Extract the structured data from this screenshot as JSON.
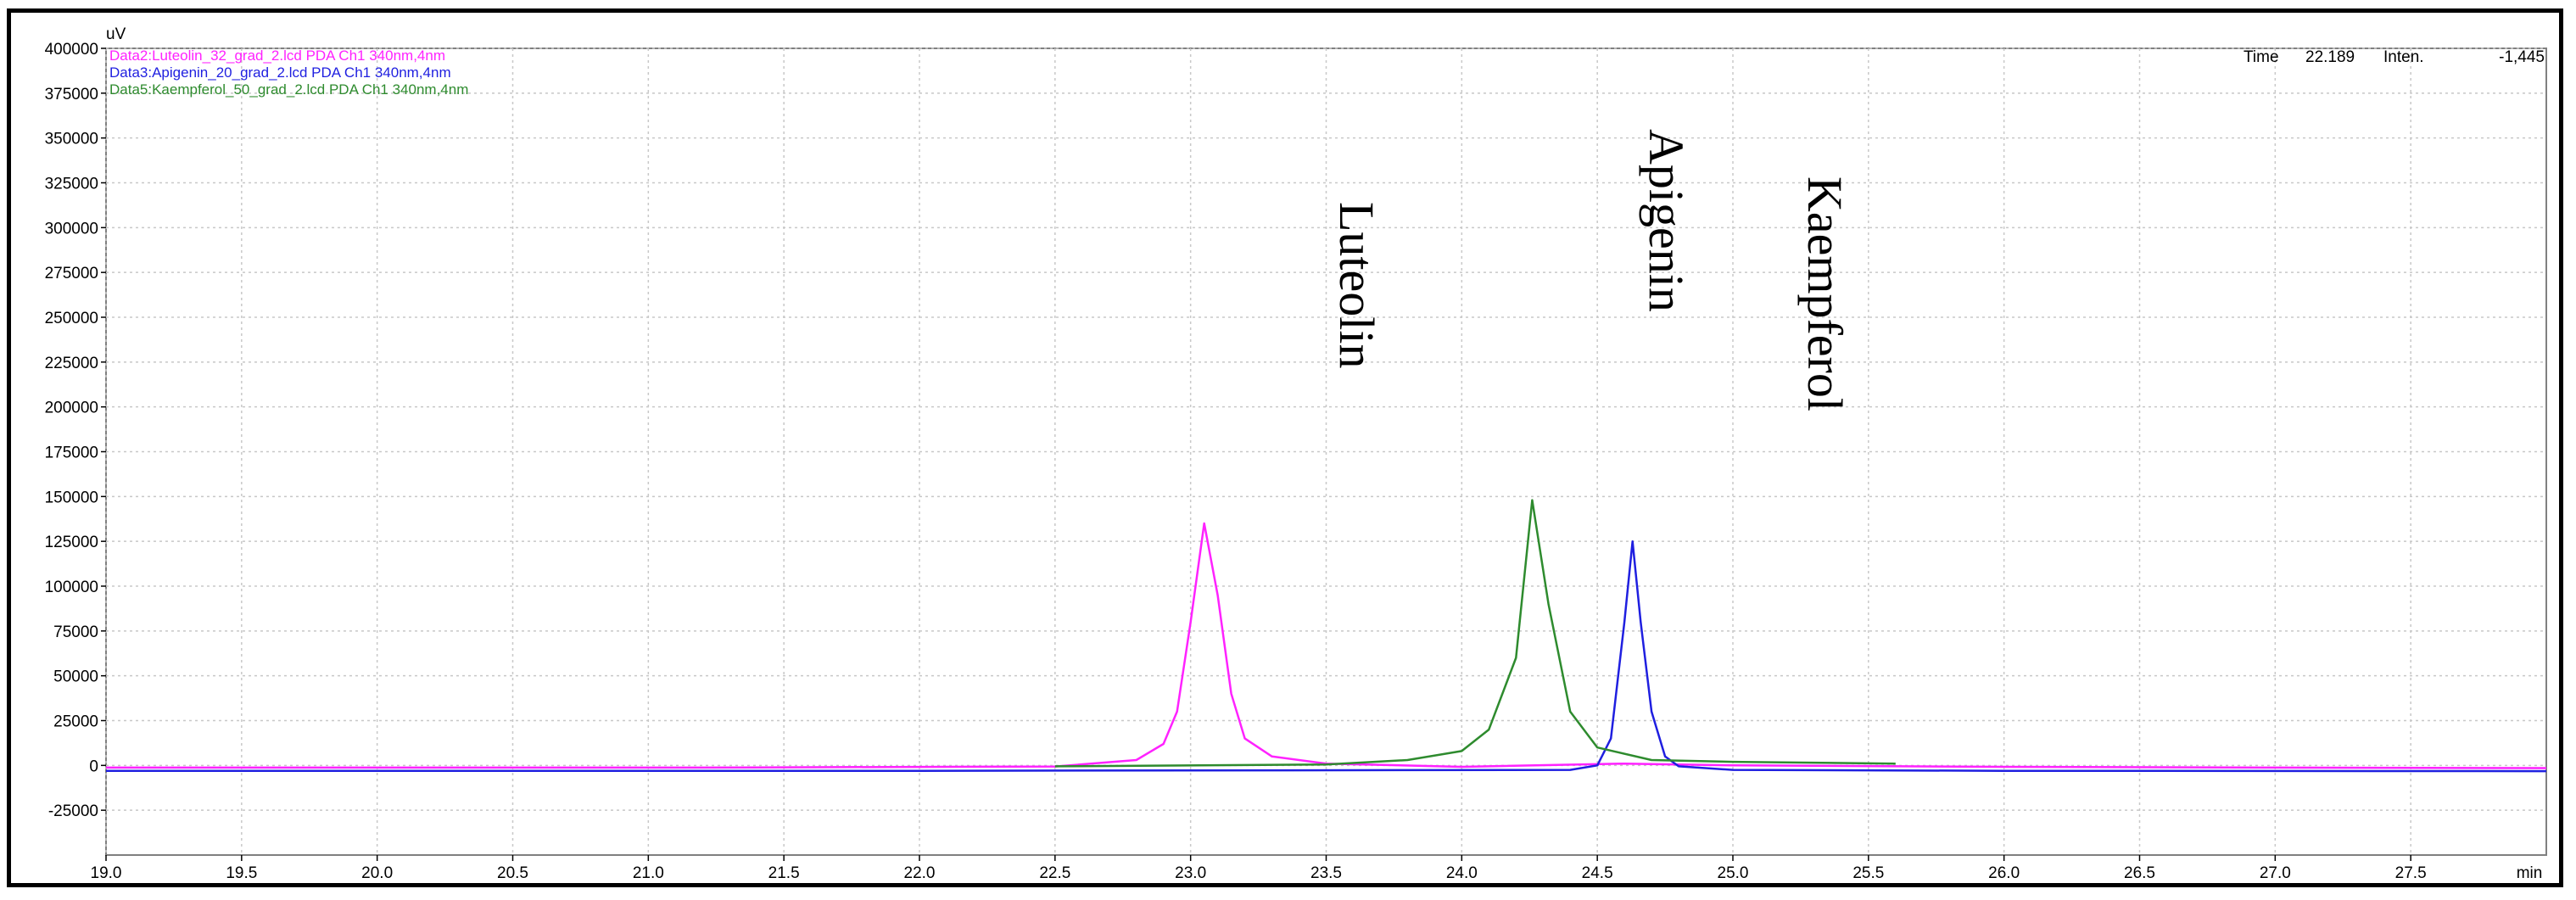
{
  "chart_data": {
    "type": "line",
    "ylabel": "uV",
    "xunit": "min",
    "xlim": [
      19.0,
      28.0
    ],
    "ylim": [
      -50000,
      400000
    ],
    "grid": true,
    "yticks": [
      400000,
      375000,
      350000,
      325000,
      300000,
      275000,
      250000,
      225000,
      200000,
      175000,
      150000,
      125000,
      100000,
      75000,
      50000,
      25000,
      0,
      -25000
    ],
    "xticks": [
      19.0,
      19.5,
      20.0,
      20.5,
      21.0,
      21.5,
      22.0,
      22.5,
      23.0,
      23.5,
      24.0,
      24.5,
      25.0,
      25.5,
      26.0,
      26.5,
      27.0,
      27.5
    ],
    "xtick_labels": [
      "19.0",
      "19.5",
      "20.0",
      "20.5",
      "21.0",
      "21.5",
      "22.0",
      "22.5",
      "23.0",
      "23.5",
      "24.0",
      "24.5",
      "25.0",
      "25.5",
      "26.0",
      "26.5",
      "27.0",
      "27.5",
      "min"
    ],
    "ytick_labels": [
      "400000",
      "375000",
      "350000",
      "325000",
      "300000",
      "275000",
      "250000",
      "225000",
      "200000",
      "175000",
      "150000",
      "125000",
      "100000",
      "75000",
      "50000",
      "25000",
      "0",
      "-25000"
    ],
    "legend_position": "top-left",
    "series": [
      {
        "name": "Data2:Luteolin_32_grad_2.lcd PDA Ch1 340nm,4nm",
        "color": "#ff22ff",
        "points": [
          [
            19.0,
            -1200
          ],
          [
            21.2,
            -1200
          ],
          [
            22.5,
            -600
          ],
          [
            22.8,
            3000
          ],
          [
            22.9,
            12000
          ],
          [
            22.95,
            30000
          ],
          [
            23.0,
            80000
          ],
          [
            23.05,
            135000
          ],
          [
            23.1,
            95000
          ],
          [
            23.15,
            40000
          ],
          [
            23.2,
            15000
          ],
          [
            23.3,
            5000
          ],
          [
            23.5,
            1000
          ],
          [
            24.0,
            -800
          ],
          [
            24.6,
            1000
          ],
          [
            25.0,
            0
          ],
          [
            26.0,
            -800
          ],
          [
            27.0,
            -1200
          ],
          [
            28.0,
            -1500
          ]
        ]
      },
      {
        "name": "Data3:Apigenin_20_grad_2.lcd PDA Ch1 340nm,4nm",
        "color": "#1f1fe0",
        "points": [
          [
            19.0,
            -3000
          ],
          [
            22.0,
            -3000
          ],
          [
            24.4,
            -2500
          ],
          [
            24.5,
            0
          ],
          [
            24.55,
            15000
          ],
          [
            24.6,
            80000
          ],
          [
            24.63,
            125000
          ],
          [
            24.66,
            80000
          ],
          [
            24.7,
            30000
          ],
          [
            24.75,
            5000
          ],
          [
            24.8,
            -500
          ],
          [
            25.0,
            -2500
          ],
          [
            26.0,
            -3000
          ],
          [
            28.0,
            -3200
          ]
        ]
      },
      {
        "name": "Data5:Kaempferol_50_grad_2.lcd PDA Ch1 340nm,4nm",
        "color": "#2e8b2e",
        "points": [
          [
            22.5,
            -500
          ],
          [
            23.5,
            500
          ],
          [
            23.8,
            3000
          ],
          [
            24.0,
            8000
          ],
          [
            24.1,
            20000
          ],
          [
            24.2,
            60000
          ],
          [
            24.26,
            148000
          ],
          [
            24.32,
            90000
          ],
          [
            24.4,
            30000
          ],
          [
            24.5,
            10000
          ],
          [
            24.7,
            3000
          ],
          [
            25.0,
            2000
          ],
          [
            25.6,
            1000
          ]
        ]
      }
    ],
    "annotations": [
      "Luteolin",
      "Apigenin",
      "Kaempferol"
    ],
    "readout": {
      "time_label": "Time",
      "time_value": "22.189",
      "inten_label": "Inten.",
      "inten_value": "-1,445"
    }
  }
}
